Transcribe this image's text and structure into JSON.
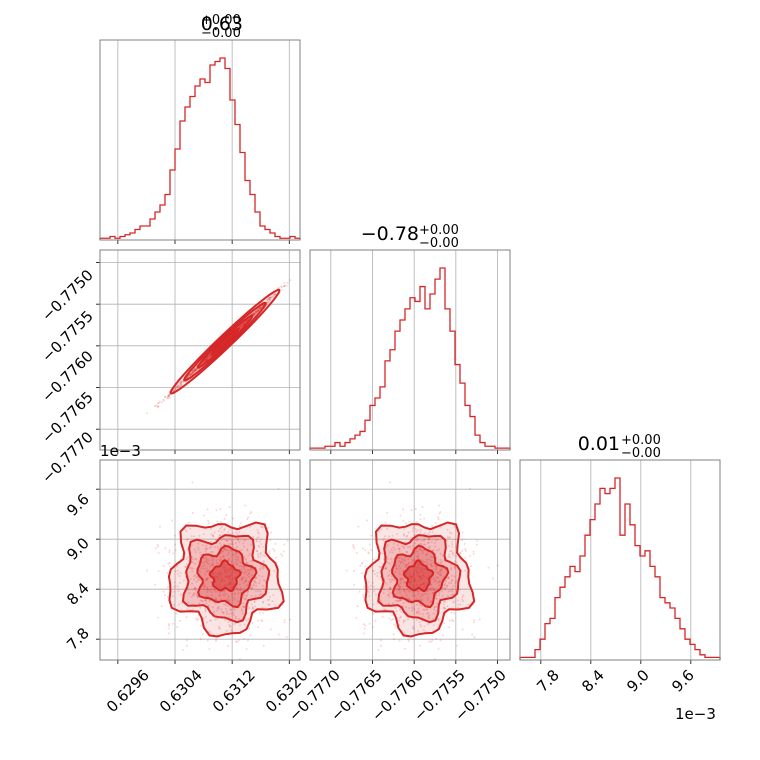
{
  "figure": {
    "accent_color": "#d62728",
    "grid": true
  },
  "params": [
    {
      "title_value": "0.63",
      "title_plus": "+0.00",
      "title_minus": "−0.00"
    },
    {
      "title_value": "−0.78",
      "title_plus": "+0.00",
      "title_minus": "−0.00"
    },
    {
      "title_value": "0.01",
      "title_plus": "+0.00",
      "title_minus": "−0.00"
    }
  ],
  "axes": {
    "x0_ticks": [
      "0.6296",
      "0.6304",
      "0.6312",
      "0.6320"
    ],
    "x1_ticks": [
      "−0.7770",
      "−0.7765",
      "−0.7760",
      "−0.7755",
      "−0.7750"
    ],
    "x2_ticks": [
      "7.8",
      "8.4",
      "9.0",
      "9.6"
    ],
    "y_row1_ticks": [
      "−0.7750",
      "−0.7755",
      "−0.7760",
      "−0.7765",
      "−0.7770"
    ],
    "y_row2_ticks": [
      "9.6",
      "9.0",
      "8.4",
      "7.8"
    ],
    "y_row2_offset": "1e−3",
    "x2_offset": "1e−3"
  },
  "chart_data": {
    "type": "corner",
    "xlim": [
      [
        0.62935,
        0.63215
      ],
      [
        -0.77725,
        -0.77485
      ],
      [
        7.55,
        9.95
      ]
    ],
    "color": "#d62728",
    "histograms": [
      {
        "param_index": 0,
        "bin_edges_start": 0.6294,
        "bin_width": 5.45e-05,
        "counts": [
          0.5,
          0.5,
          1,
          0.5,
          1,
          1.5,
          2,
          3,
          4,
          4,
          6,
          8,
          10,
          13,
          20,
          26,
          34,
          38,
          41,
          44,
          46,
          45,
          50,
          51,
          52,
          49,
          40,
          33,
          25,
          17,
          13,
          8,
          4,
          3,
          2,
          1,
          0.5,
          0.5,
          1,
          0.5
        ]
      },
      {
        "param_index": 1,
        "bin_edges_start": -0.77725,
        "bin_width": 6e-05,
        "counts": [
          0.5,
          0.5,
          0.5,
          1,
          1,
          2,
          1,
          2,
          3,
          4,
          5,
          8,
          12,
          14,
          17,
          24,
          27,
          32,
          35,
          38,
          41,
          40,
          44,
          38,
          42,
          46,
          49,
          38,
          32,
          23,
          18,
          12,
          9,
          4,
          2,
          1,
          1,
          0.5,
          0.5,
          0.5
        ]
      },
      {
        "param_index": 2,
        "bin_edges_start": 7.55,
        "bin_width": 0.06,
        "counts": [
          0.5,
          0.5,
          0.5,
          2,
          4,
          7,
          8,
          12,
          14,
          16,
          18,
          17,
          20,
          24,
          27,
          30,
          33,
          32,
          33,
          35,
          24,
          30,
          26,
          22,
          20,
          21,
          18,
          16,
          12,
          11,
          10,
          8,
          6,
          4,
          3,
          2,
          1,
          0.5,
          0.5,
          0.5
        ]
      }
    ],
    "correlations": {
      "p0_p1": "strong positive",
      "p0_p2": "weak",
      "p1_p2": "weak"
    },
    "centers": [
      0.6311,
      -0.77595,
      8.55
    ],
    "spreads": [
      0.00038,
      0.00031,
      0.33
    ]
  }
}
